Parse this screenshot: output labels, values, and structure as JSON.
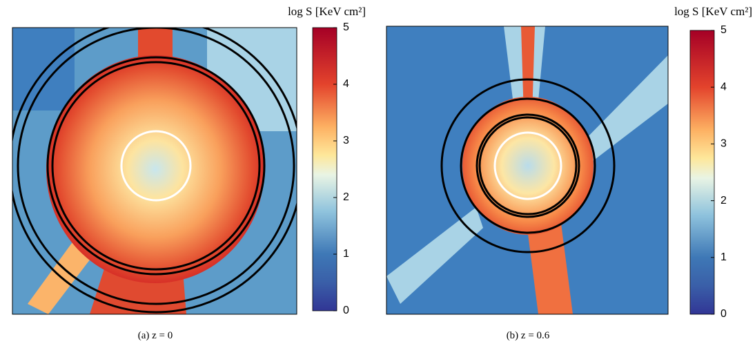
{
  "panels": [
    {
      "caption": "(a) z = 0",
      "colorbar": {
        "label": "log S [KeV cm²]",
        "lim": [
          0,
          5
        ],
        "ticks": [
          0,
          1,
          2,
          3,
          4,
          5
        ]
      }
    },
    {
      "caption": "(b) z = 0.6",
      "colorbar": {
        "label": "log S [KeV cm²]",
        "lim": [
          0,
          5
        ],
        "ticks": [
          0,
          1,
          2,
          3,
          4,
          5
        ]
      }
    }
  ]
}
